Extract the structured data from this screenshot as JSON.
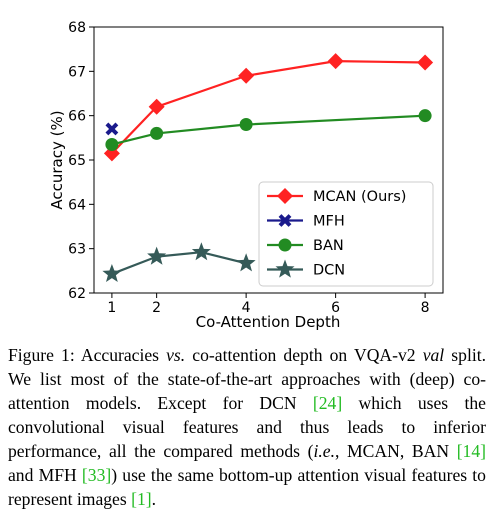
{
  "chart_data": {
    "type": "line",
    "xlabel": "Co-Attention Depth",
    "ylabel": "Accuracy (%)",
    "xlim": [
      0.6,
      8.4
    ],
    "ylim": [
      62,
      68
    ],
    "xticks": [
      1,
      2,
      4,
      6,
      8
    ],
    "yticks": [
      62,
      63,
      64,
      65,
      66,
      67,
      68
    ],
    "grid": false,
    "legend_position": "lower-right",
    "series": [
      {
        "name": "MCAN (Ours)",
        "color": "#ff2222",
        "marker": "diamond",
        "x": [
          1,
          2,
          4,
          6,
          8
        ],
        "y": [
          65.15,
          66.2,
          66.9,
          67.23,
          67.2
        ]
      },
      {
        "name": "MFH",
        "color": "#1a1a8c",
        "marker": "x",
        "x": [
          1
        ],
        "y": [
          65.7
        ]
      },
      {
        "name": "BAN",
        "color": "#228b22",
        "marker": "circle",
        "x": [
          1,
          2,
          4,
          8
        ],
        "y": [
          65.35,
          65.6,
          65.8,
          66.0
        ]
      },
      {
        "name": "DCN",
        "color": "#355a58",
        "marker": "star",
        "x": [
          1,
          2,
          3,
          4
        ],
        "y": [
          62.43,
          62.82,
          62.92,
          62.67
        ]
      }
    ]
  },
  "caption": {
    "label": "Figure 1:",
    "t1": " Accuracies ",
    "vs": "vs.",
    "t2": " co-attention depth on VQA-v2 ",
    "val": "val",
    "t3": " split. We list most of the state-of-the-art approaches with (deep) co-attention models. Except for DCN ",
    "cite_dcn": "[24]",
    "t4": " which uses the convolutional visual features and thus leads to inferior performance, all the compared methods (",
    "ie": "i.e.",
    "t5": ", MCAN, BAN ",
    "cite_ban": "[14]",
    "t6": " and MFH ",
    "cite_mfh": "[33]",
    "t7": ") use the same bottom-up attention visual features to represent images ",
    "cite_ref": "[1]",
    "t8": "."
  }
}
